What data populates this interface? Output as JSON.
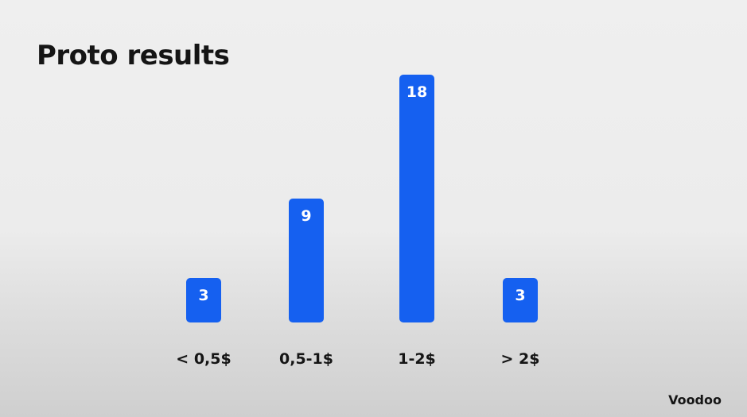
{
  "title": "Proto results",
  "brand": "Voodoo",
  "colors": {
    "bar": "#1560f0",
    "text": "#151515",
    "value_label": "#ffffff"
  },
  "chart_data": {
    "type": "bar",
    "categories": [
      "< 0,5$",
      "0,5-1$",
      "1-2$",
      "> 2$"
    ],
    "values": [
      3,
      9,
      18,
      3
    ],
    "title": "",
    "xlabel": "",
    "ylabel": "",
    "ylim": [
      0,
      18
    ],
    "grid": false,
    "data_labels": [
      "3",
      "9",
      "18",
      "3"
    ]
  }
}
